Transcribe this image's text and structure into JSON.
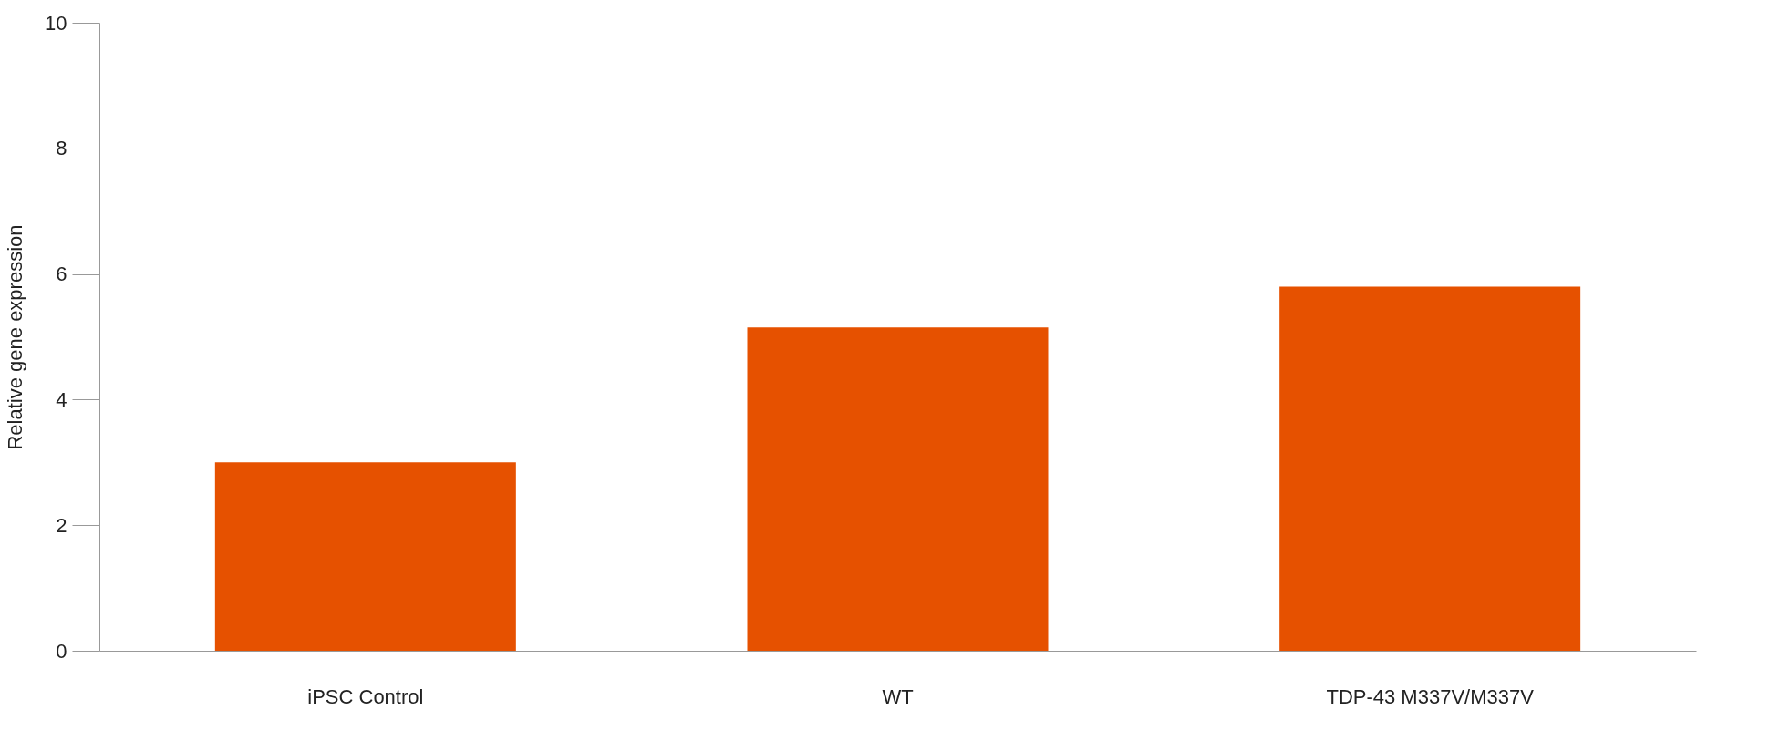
{
  "chart_data": {
    "type": "bar",
    "ylabel": "Relative gene expression",
    "categories": [
      "iPSC Control",
      "WT",
      "TDP-43 M337V/M337V"
    ],
    "values": [
      3.0,
      5.15,
      5.8
    ],
    "color": "#e65100",
    "ylim": [
      0,
      10
    ],
    "yticks": [
      0,
      2,
      4,
      6,
      8,
      10
    ],
    "grid": false
  }
}
